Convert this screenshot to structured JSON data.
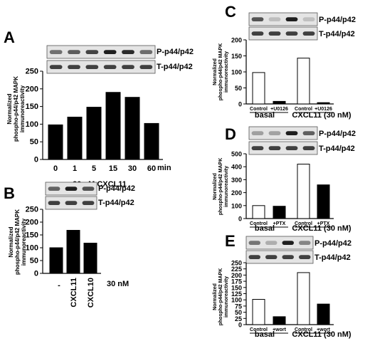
{
  "panels": {
    "A": {
      "letter": "A",
      "blot_labels": [
        "P-p44/p42",
        "T-p44/p42"
      ],
      "ylabel": [
        "Normalized",
        "phospho-p44/p42 MAPK",
        "immunoreactivity"
      ],
      "unit": "min",
      "condition": "30 nM CXCL11"
    },
    "B": {
      "letter": "B",
      "blot_labels": [
        "P-p44/p42",
        "T-p44/p42"
      ],
      "ylabel": [
        "Normalized",
        "phospho-p44/p42 MAPK",
        "immunoreactivity"
      ],
      "unit": "30 nM"
    },
    "C": {
      "letter": "C",
      "blot_labels": [
        "P-p44/p42",
        "T-p44/p42"
      ],
      "ylabel": [
        "Normalized",
        "phospho-p44/p42 MAPK",
        "immunoreactivity"
      ],
      "groups": [
        "basal",
        "CXCL11 (30 nM)"
      ]
    },
    "D": {
      "letter": "D",
      "blot_labels": [
        "P-p44/p42",
        "T-p44/p42"
      ],
      "ylabel": [
        "Normalized",
        "phospho-p44/p42 MAPK",
        "immunoreactivity"
      ],
      "groups": [
        "basal",
        "CXCL11 (30 nM)"
      ]
    },
    "E": {
      "letter": "E",
      "blot_labels": [
        "P-p44/p42",
        "T-p44/p42"
      ],
      "ylabel": [
        "Normalized",
        "phospho-p44/p42 MAPK",
        "immunoreactivity"
      ],
      "groups": [
        "basal",
        "CXCL11 (30 nM)"
      ]
    }
  },
  "chart_data": [
    {
      "panel": "A",
      "type": "bar",
      "categories": [
        "0",
        "1",
        "5",
        "15",
        "30",
        "60"
      ],
      "values": [
        98,
        120,
        148,
        190,
        176,
        102
      ],
      "fills": [
        "#000000",
        "#000000",
        "#000000",
        "#000000",
        "#000000",
        "#000000"
      ],
      "ylim": [
        0,
        250
      ],
      "yticks": [
        0,
        50,
        100,
        150,
        200,
        250
      ]
    },
    {
      "panel": "B",
      "type": "bar",
      "categories": [
        "-",
        "CXCL11",
        "CXCL10"
      ],
      "values": [
        100,
        168,
        118
      ],
      "fills": [
        "#000000",
        "#000000",
        "#000000"
      ],
      "ylim": [
        0,
        250
      ],
      "yticks": [
        0,
        50,
        100,
        150,
        200,
        250
      ]
    },
    {
      "panel": "C",
      "type": "bar",
      "categories": [
        "Control",
        "+U0126",
        "Control",
        "+U0126"
      ],
      "values": [
        98,
        8,
        143,
        4
      ],
      "fills": [
        "#ffffff",
        "#000000",
        "#ffffff",
        "#000000"
      ],
      "ylim": [
        0,
        200
      ],
      "yticks": [
        0,
        50,
        100,
        150,
        200
      ]
    },
    {
      "panel": "D",
      "type": "bar",
      "categories": [
        "Control",
        "+PTX",
        "Control",
        "+PTX"
      ],
      "values": [
        100,
        95,
        420,
        260
      ],
      "fills": [
        "#ffffff",
        "#000000",
        "#ffffff",
        "#000000"
      ],
      "ylim": [
        0,
        500
      ],
      "yticks": [
        0,
        100,
        200,
        300,
        400,
        500
      ]
    },
    {
      "panel": "E",
      "type": "bar",
      "categories": [
        "Control",
        "+wort",
        "Control",
        "+wort"
      ],
      "values": [
        102,
        32,
        210,
        83
      ],
      "fills": [
        "#ffffff",
        "#000000",
        "#ffffff",
        "#000000"
      ],
      "ylim": [
        0,
        250
      ],
      "yticks": [
        0,
        25,
        50,
        75,
        100,
        125,
        150,
        175,
        200,
        225,
        250
      ]
    }
  ]
}
